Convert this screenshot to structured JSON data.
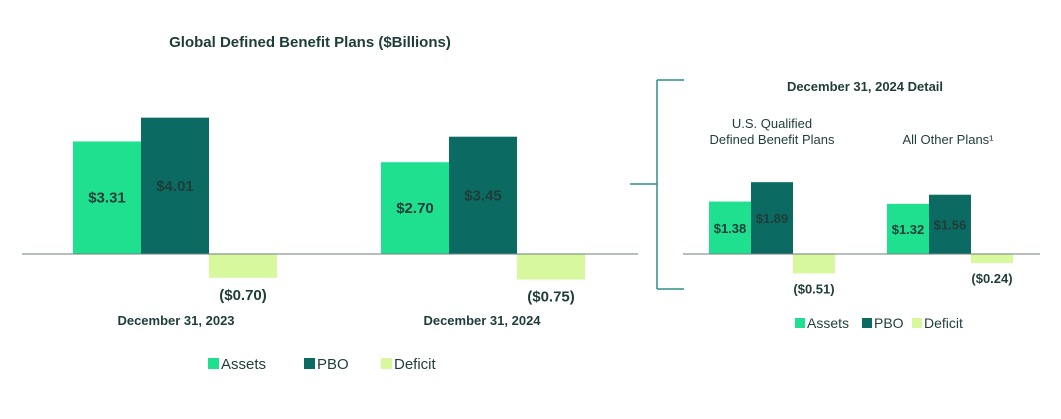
{
  "colors": {
    "assets": "#1fe08f",
    "pbo": "#0b6b63",
    "deficit": "#d7f89c",
    "axis": "#6f7f7d",
    "text": "#1f3d38",
    "bracket": "#2b8f88"
  },
  "chart_data": [
    {
      "type": "bar",
      "title": "Global Defined Benefit Plans ($Billions)",
      "categories": [
        "December 31, 2023",
        "December 31, 2024"
      ],
      "series": [
        {
          "name": "Assets",
          "values": [
            3.31,
            2.7
          ],
          "labels": [
            "$3.31",
            "$2.70"
          ]
        },
        {
          "name": "PBO",
          "values": [
            4.01,
            3.45
          ],
          "labels": [
            "$4.01",
            "$3.45"
          ]
        },
        {
          "name": "Deficit",
          "values": [
            -0.7,
            -0.75
          ],
          "labels": [
            "($0.70)",
            "($0.75)"
          ]
        }
      ],
      "legend": {
        "position": "bottom",
        "entries": [
          "Assets",
          "PBO",
          "Deficit"
        ]
      }
    },
    {
      "type": "bar",
      "title": "December 31, 2024 Detail",
      "categories": [
        "U.S. Qualified\nDefined Benefit Plans",
        "All Other Plans¹"
      ],
      "series": [
        {
          "name": "Assets",
          "values": [
            1.38,
            1.32
          ],
          "labels": [
            "$1.38",
            "$1.32"
          ]
        },
        {
          "name": "PBO",
          "values": [
            1.89,
            1.56
          ],
          "labels": [
            "$1.89",
            "$1.56"
          ]
        },
        {
          "name": "Deficit",
          "values": [
            -0.51,
            -0.24
          ],
          "labels": [
            "($0.51)",
            "($0.24)"
          ]
        }
      ],
      "legend": {
        "position": "bottom",
        "entries": [
          "Assets",
          "PBO",
          "Deficit"
        ]
      }
    }
  ]
}
